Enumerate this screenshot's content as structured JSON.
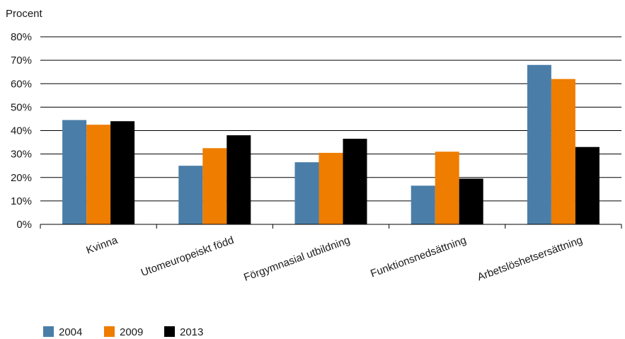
{
  "chart_data": {
    "type": "bar",
    "title": "",
    "xlabel": "",
    "ylabel": "Procent",
    "ylim": [
      0,
      80
    ],
    "y_ticks": [
      "0%",
      "10%",
      "20%",
      "30%",
      "40%",
      "50%",
      "60%",
      "70%",
      "80%"
    ],
    "y_tick_values": [
      0,
      10,
      20,
      30,
      40,
      50,
      60,
      70,
      80
    ],
    "grid": true,
    "legend_position": "bottom-left",
    "categories": [
      "Kvinna",
      "Utomeuropeiskt född",
      "Förgymnasial utbildning",
      "Funktionsnedsättning",
      "Arbetslöshetsersättning"
    ],
    "series": [
      {
        "name": "2004",
        "color": "#4a7ea8",
        "values": [
          44.5,
          25,
          26.5,
          16.5,
          68
        ]
      },
      {
        "name": "2009",
        "color": "#ef7d00",
        "values": [
          42.5,
          32.5,
          30.5,
          31,
          62
        ]
      },
      {
        "name": "2013",
        "color": "#000000",
        "values": [
          44,
          38,
          36.5,
          19.5,
          33
        ]
      }
    ]
  }
}
